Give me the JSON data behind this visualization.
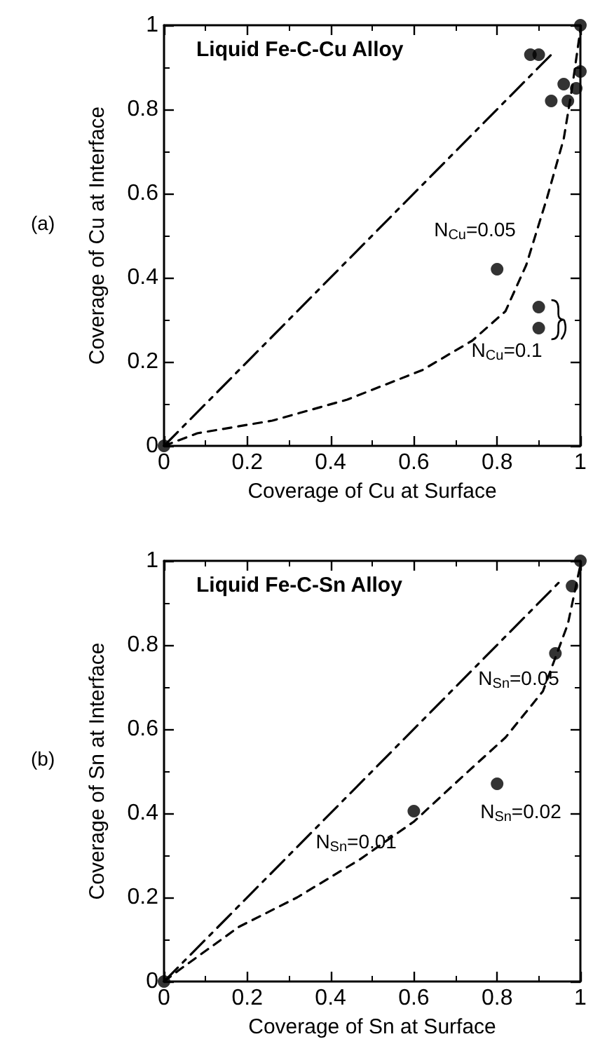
{
  "chart_data": [
    {
      "type": "scatter",
      "title": "Liquid Fe-C-Cu Alloy",
      "xlabel": "Coverage of Cu at Surface",
      "ylabel": "Coverage of Cu at Interface",
      "marker": "circle",
      "grid": false,
      "xlim": [
        0,
        1
      ],
      "ylim": [
        0,
        1
      ],
      "xticks": [
        0,
        0.2,
        0.4,
        0.6,
        0.8,
        1
      ],
      "yticks": [
        0,
        0.2,
        0.4,
        0.6,
        0.8,
        1
      ],
      "series": [
        {
          "type": "line",
          "color": "#000000",
          "line_style": "dashdot",
          "marker": "none",
          "x": [
            0,
            0.93
          ],
          "values": [
            0,
            0.93
          ]
        },
        {
          "type": "line",
          "color": "#000000",
          "line_style": "dashed",
          "marker": "none",
          "x": [
            0,
            0.08,
            0.26,
            0.44,
            0.62,
            0.74,
            0.82,
            0.87,
            0.92,
            0.96,
            0.98,
            1
          ],
          "values": [
            0,
            0.03,
            0.06,
            0.11,
            0.18,
            0.25,
            0.32,
            0.43,
            0.59,
            0.73,
            0.85,
            0.99
          ]
        },
        {
          "color": "#000000",
          "x": [
            0,
            1,
            0.88,
            0.9,
            1,
            0.96,
            0.99,
            0.93,
            0.97,
            0.8,
            0.9,
            0.9
          ],
          "values": [
            0,
            1,
            0.93,
            0.93,
            0.89,
            0.86,
            0.85,
            0.82,
            0.82,
            0.42,
            0.33,
            0.28
          ]
        }
      ],
      "annotations": [
        "(a)",
        {
          "text": "N$_{Cu}$=0.05",
          "x": 0.8,
          "y": 0.42
        },
        {
          "text": "N$_{Cu}$=0.1",
          "x": 0.9,
          "y": 0.3
        }
      ]
    },
    {
      "type": "scatter",
      "title": "Liquid Fe-C-Sn Alloy",
      "xlabel": "Coverage of Sn at Surface",
      "ylabel": "Coverage of Sn at Interface",
      "marker": "circle",
      "grid": false,
      "xlim": [
        0,
        1
      ],
      "ylim": [
        0,
        1
      ],
      "xticks": [
        0,
        0.2,
        0.4,
        0.6,
        0.8,
        1
      ],
      "yticks": [
        0,
        0.2,
        0.4,
        0.6,
        0.8,
        1
      ],
      "series": [
        {
          "type": "line",
          "color": "#000000",
          "line_style": "dashdot",
          "marker": "none",
          "x": [
            0,
            0.95
          ],
          "values": [
            0,
            0.95
          ]
        },
        {
          "type": "line",
          "color": "#000000",
          "line_style": "dashed",
          "marker": "none",
          "x": [
            0,
            0.04,
            0.18,
            0.32,
            0.47,
            0.6,
            0.72,
            0.82,
            0.91,
            0.97,
            1
          ],
          "values": [
            0,
            0.03,
            0.13,
            0.2,
            0.29,
            0.38,
            0.49,
            0.58,
            0.69,
            0.85,
            0.99
          ]
        },
        {
          "color": "#000000",
          "x": [
            0,
            1,
            0.98,
            0.94,
            0.8,
            0.6
          ],
          "values": [
            0,
            1,
            0.94,
            0.78,
            0.47,
            0.405
          ]
        }
      ],
      "annotations": [
        "(b)",
        {
          "text": "N$_{Sn}$=0.01",
          "x": 0.6,
          "y": 0.405
        },
        {
          "text": "N$_{Sn}$=0.02",
          "x": 0.8,
          "y": 0.47
        },
        {
          "text": "N$_{Sn}$=0.05",
          "x": 0.94,
          "y": 0.78
        }
      ]
    }
  ]
}
